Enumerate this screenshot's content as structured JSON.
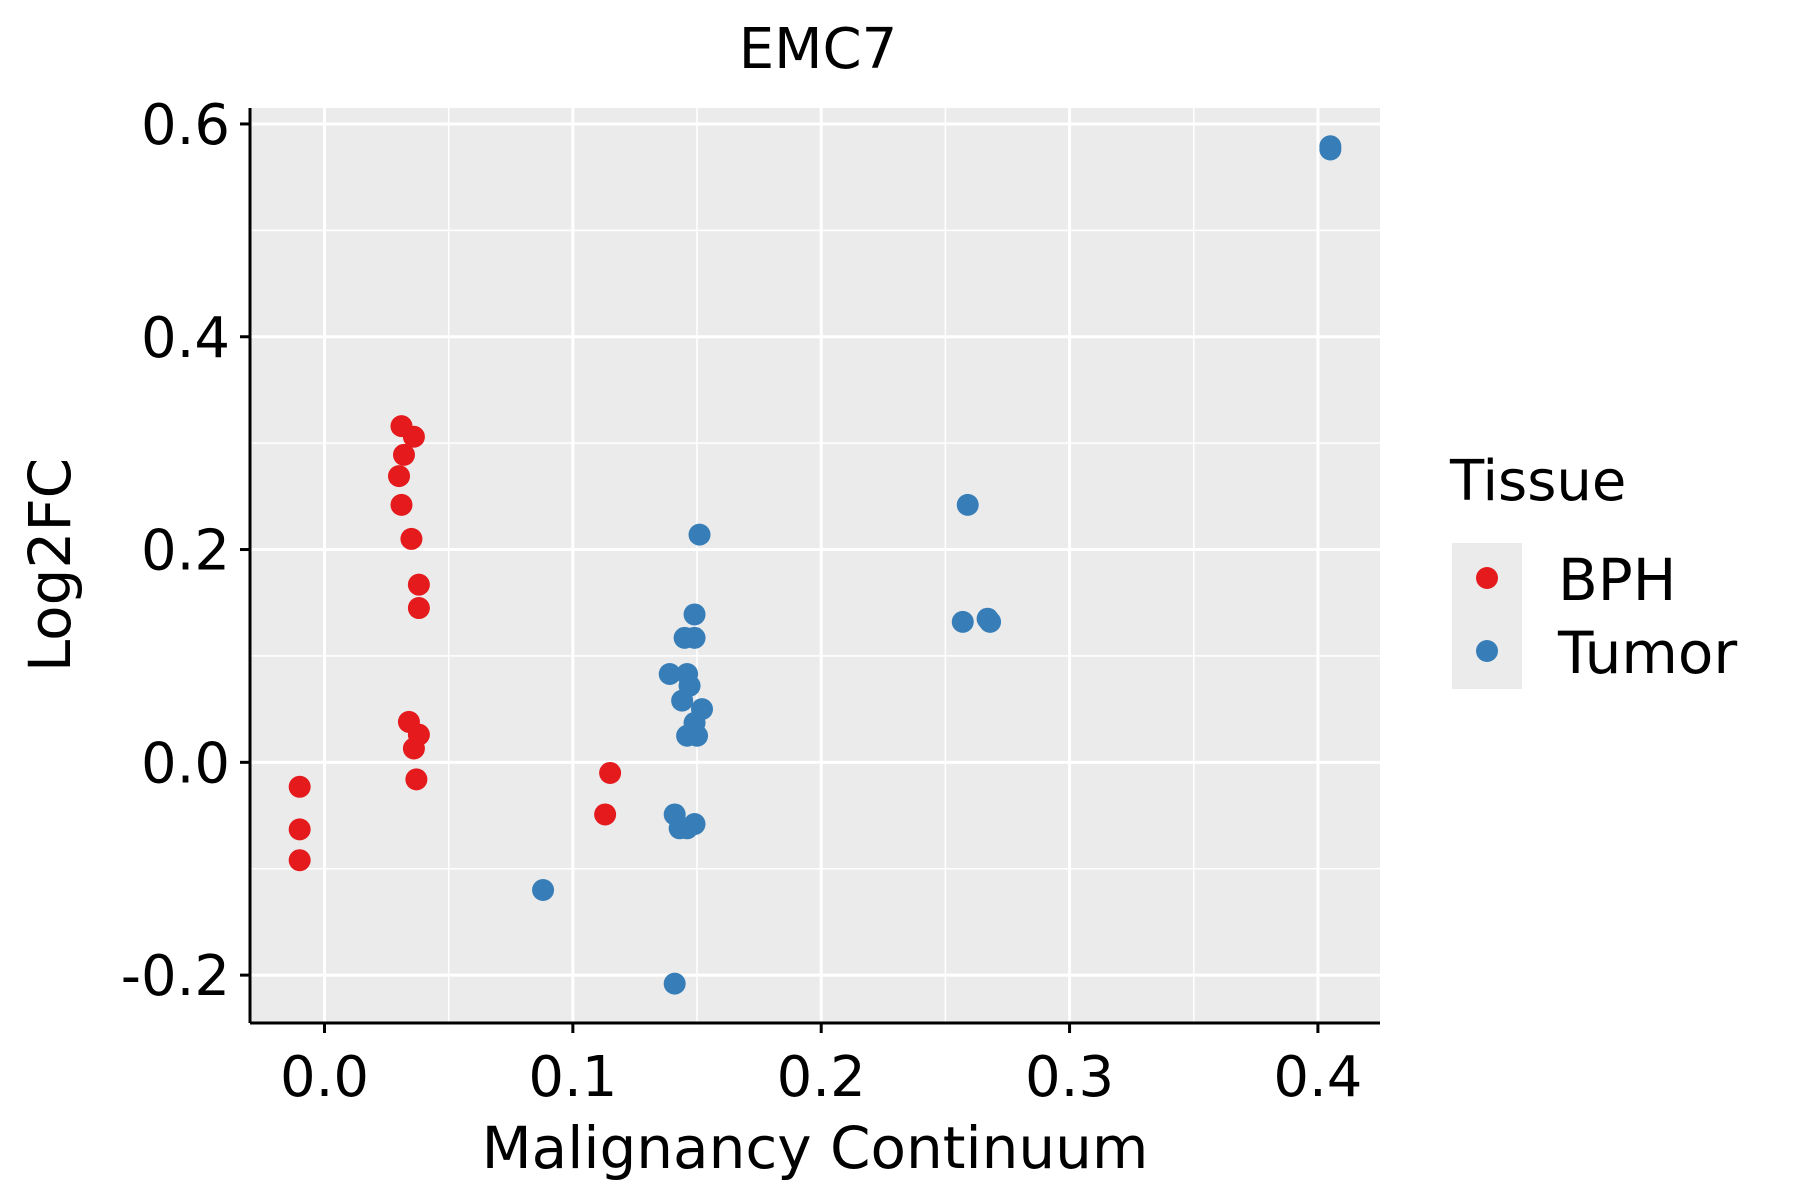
{
  "chart_data": {
    "type": "scatter",
    "title": "EMC7",
    "xlabel": "Malignancy Continuum",
    "ylabel": "Log2FC",
    "xlim": [
      -0.03,
      0.425
    ],
    "ylim": [
      -0.245,
      0.615
    ],
    "x_ticks": [
      0.0,
      0.1,
      0.2,
      0.3,
      0.4
    ],
    "x_tick_labels": [
      "0.0",
      "0.1",
      "0.2",
      "0.3",
      "0.4"
    ],
    "y_ticks": [
      -0.2,
      0.0,
      0.2,
      0.4,
      0.6
    ],
    "y_tick_labels": [
      "-0.2",
      "0.0",
      "0.2",
      "0.4",
      "0.6"
    ],
    "grid": true,
    "legend": {
      "title": "Tissue",
      "position": "right",
      "entries": [
        "BPH",
        "Tumor"
      ]
    },
    "colors": {
      "BPH": "#e41a1c",
      "Tumor": "#377eb8"
    },
    "series": [
      {
        "name": "BPH",
        "x": [
          -0.01,
          -0.01,
          -0.01,
          0.031,
          0.032,
          0.03,
          0.031,
          0.036,
          0.035,
          0.038,
          0.038,
          0.034,
          0.038,
          0.036,
          0.037,
          0.115,
          0.113
        ],
        "y": [
          -0.023,
          -0.063,
          -0.092,
          0.316,
          0.289,
          0.269,
          0.242,
          0.306,
          0.21,
          0.167,
          0.145,
          0.038,
          0.026,
          0.013,
          -0.016,
          -0.01,
          -0.049
        ]
      },
      {
        "name": "Tumor",
        "x": [
          0.405,
          0.405,
          0.259,
          0.257,
          0.267,
          0.268,
          0.151,
          0.149,
          0.145,
          0.149,
          0.139,
          0.146,
          0.147,
          0.144,
          0.152,
          0.149,
          0.146,
          0.15,
          0.141,
          0.143,
          0.146,
          0.149,
          0.088,
          0.141
        ],
        "y": [
          0.579,
          0.576,
          0.242,
          0.132,
          0.135,
          0.132,
          0.214,
          0.139,
          0.117,
          0.117,
          0.083,
          0.083,
          0.072,
          0.058,
          0.05,
          0.037,
          0.025,
          0.025,
          -0.049,
          -0.062,
          -0.062,
          -0.058,
          -0.12,
          -0.208
        ]
      }
    ]
  }
}
